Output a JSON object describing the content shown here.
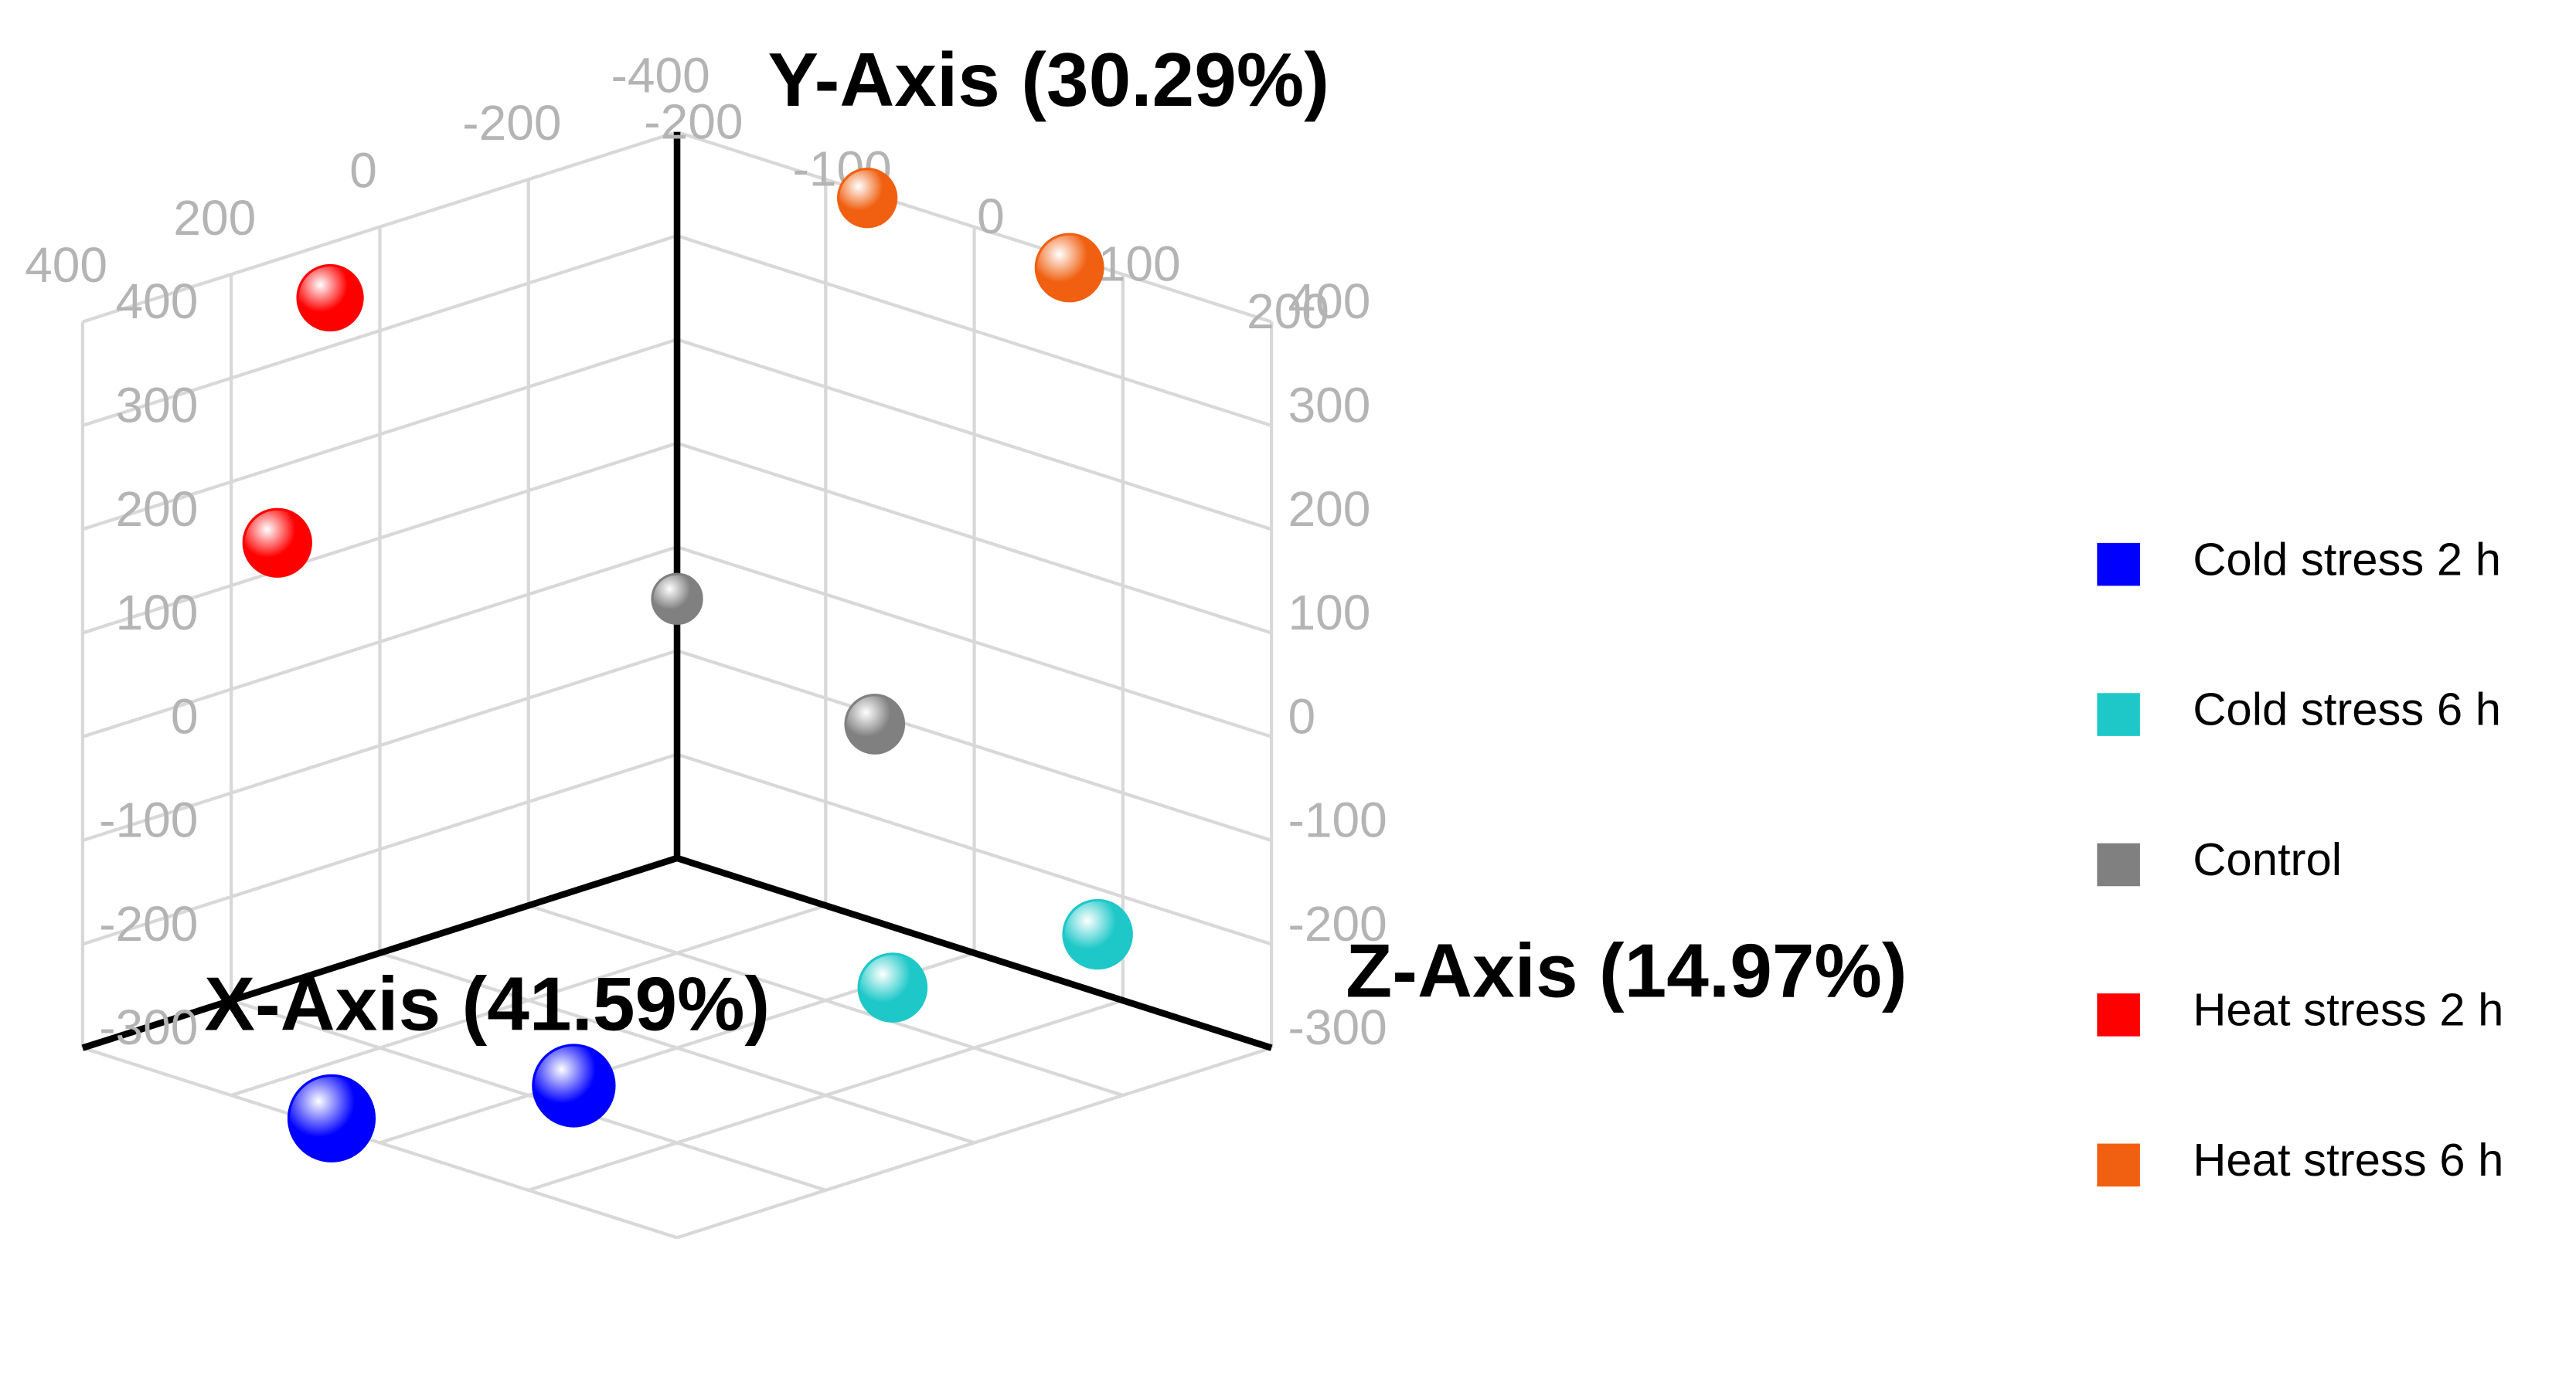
{
  "chart_data": {
    "type": "scatter3d",
    "x_label": "X-Axis (41.59%)",
    "y_label": "Y-Axis (30.29%)",
    "z_label": "Z-Axis (14.97%)",
    "xlim": [
      -400,
      400
    ],
    "ylim": [
      -300,
      400
    ],
    "zlim": [
      -200,
      200
    ],
    "xticks": [
      -400,
      -200,
      0,
      200,
      400
    ],
    "yticks": [
      -300,
      -200,
      -100,
      0,
      100,
      200,
      300,
      400
    ],
    "zticks": [
      -200,
      -100,
      0,
      100,
      200
    ],
    "grid": true,
    "legend": "right",
    "series": [
      {
        "name": "Cold stress 2 h",
        "color": "#0000ff",
        "x": [
          381,
          149
        ],
        "y": [
          -300,
          -300
        ],
        "z": [
          -42,
          5
        ]
      },
      {
        "name": "Cold stress 6 h",
        "color": "#1ec8c8",
        "x": [
          -400,
          -272
        ],
        "y": [
          -244,
          -300
        ],
        "z": [
          83,
          9
        ]
      },
      {
        "name": "Control",
        "color": "#808080",
        "x": [
          -400,
          -400
        ],
        "y": [
          -50,
          -110
        ],
        "z": [
          -200,
          -67
        ]
      },
      {
        "name": "Heat stress 2 h",
        "color": "#ff0000",
        "x": [
          67,
          138
        ],
        "y": [
          347,
          127
        ],
        "z": [
          -200,
          -200
        ]
      },
      {
        "name": "Heat stress 6 h",
        "color": "#f06010",
        "x": [
          -400,
          -400
        ],
        "y": [
          395,
          390
        ],
        "z": [
          -72,
          64
        ]
      }
    ]
  }
}
